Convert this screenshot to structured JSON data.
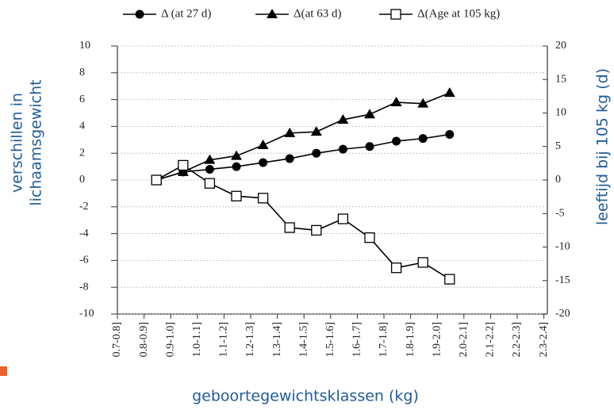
{
  "chart_data": {
    "type": "line",
    "categories": [
      "0.7-0.8]",
      "0.8-0.9]",
      "0.9-1.0]",
      "1.0-1.1]",
      "1.1-1.2]",
      "1.2-1.3]",
      "1.3-1.4]",
      "1.4-1.5]",
      "1.5-1.6]",
      "1.6-1.7]",
      "1.7-1.8]",
      "1.8-1.9]",
      "1.9-2.0]",
      "2.0-2.1]",
      "2.1-2.2]",
      "2.2-2.3]",
      "2.3-2.4]"
    ],
    "series": [
      {
        "name": "Δ (at 27 d)",
        "color": "#000000",
        "marker": "circle",
        "values": [
          null,
          null,
          0,
          0.6,
          0.8,
          1.0,
          1.3,
          1.6,
          2.0,
          2.3,
          2.5,
          2.9,
          3.1,
          3.4,
          null,
          null,
          null
        ]
      },
      {
        "name": "Δ(at 63 d)",
        "color": "#000000",
        "marker": "triangle",
        "values": [
          null,
          null,
          0,
          0.6,
          1.5,
          1.8,
          2.6,
          3.5,
          3.6,
          4.5,
          4.9,
          5.8,
          5.7,
          6.5,
          null,
          null,
          null
        ]
      },
      {
        "name": "Δ(Age at 105 kg)",
        "color": "#000000",
        "marker": "square",
        "axis": "y2",
        "values": [
          null,
          null,
          0,
          2.2,
          -0.5,
          -2.4,
          -2.7,
          -7.1,
          -7.5,
          -5.8,
          -8.6,
          -13.1,
          -12.3,
          -14.8,
          null,
          null,
          null
        ]
      }
    ],
    "ylim": [
      -10,
      10
    ],
    "yticks": [
      -10,
      -8,
      -6,
      -4,
      -2,
      0,
      2,
      4,
      6,
      8,
      10
    ],
    "y2lim": [
      -20,
      20
    ],
    "y2ticks": [
      -20,
      -15,
      -10,
      -5,
      0,
      5,
      10,
      15,
      20
    ],
    "ylabel": [
      "verschillen in",
      "lichaamsgewicht"
    ],
    "y2label": "leeftijd bij 105 kg (d)",
    "xlabel": "geboortegewichtsklassen (kg)",
    "grid": true
  }
}
